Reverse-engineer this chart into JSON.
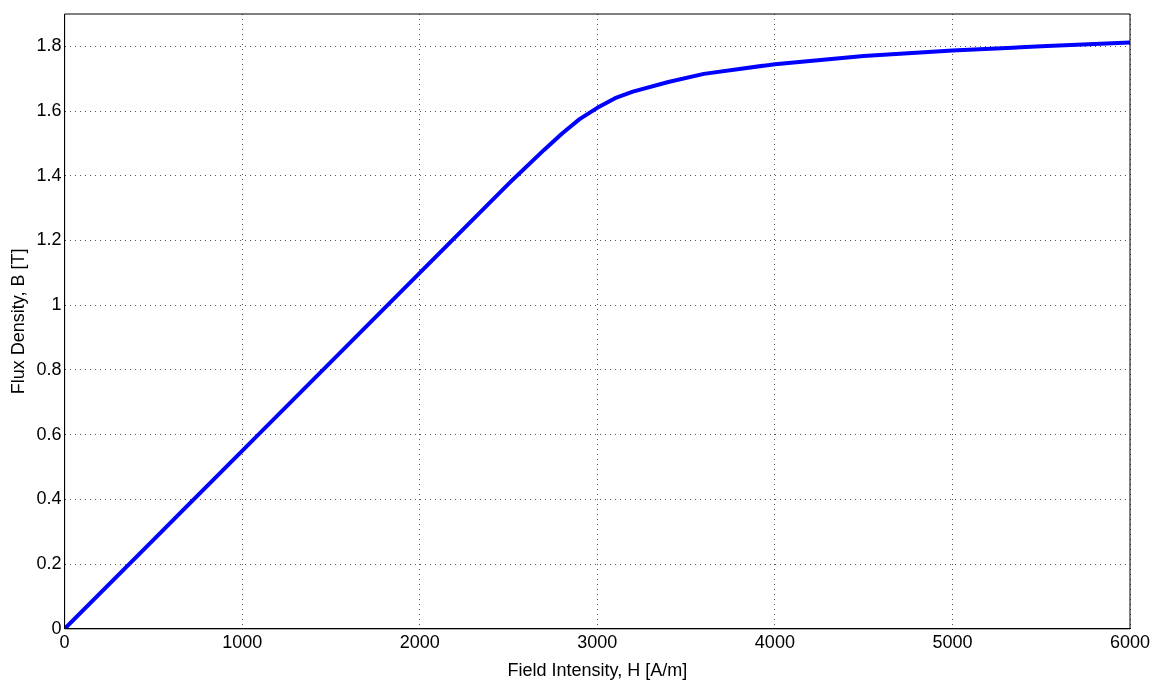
{
  "chart_data": {
    "type": "line",
    "xlabel": "Field Intensity, H [A/m]",
    "ylabel": "Flux Density, B [T]",
    "xlim": [
      0,
      6000
    ],
    "xticks": [
      0,
      1000,
      2000,
      3000,
      4000,
      5000,
      6000
    ],
    "ylim": [
      0,
      1.9
    ],
    "yticks": [
      0,
      0.2,
      0.4,
      0.6,
      0.8,
      1,
      1.2,
      1.4,
      1.6,
      1.8
    ],
    "grid": true,
    "line_style": "solid",
    "marker": "none",
    "series": [
      {
        "color": "#0000ff",
        "x": [
          0,
          500,
          1000,
          1500,
          2000,
          2500,
          2700,
          2800,
          2900,
          3000,
          3100,
          3200,
          3400,
          3600,
          3800,
          4000,
          4500,
          5000,
          5500,
          6000
        ],
        "values": [
          0,
          0.275,
          0.55,
          0.825,
          1.1,
          1.375,
          1.48,
          1.53,
          1.575,
          1.61,
          1.64,
          1.66,
          1.69,
          1.715,
          1.73,
          1.745,
          1.77,
          1.787,
          1.8,
          1.812
        ]
      }
    ]
  }
}
